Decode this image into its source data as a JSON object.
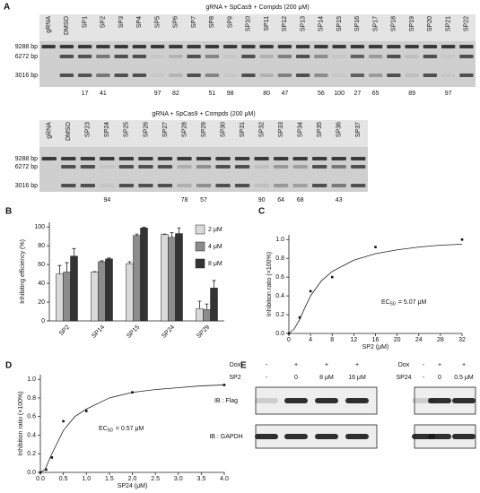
{
  "panel_a": {
    "label": "A",
    "gels": [
      {
        "title": "gRNA + SpCas9 + Compds (200 μM)",
        "lanes": [
          "gRNA",
          "DMSO",
          "SP1",
          "SP2",
          "SP3",
          "SP4",
          "SP5",
          "SP6",
          "SP7",
          "SP8",
          "SP9",
          "SP10",
          "SP11",
          "SP12",
          "SP13",
          "SP14",
          "SP15",
          "SP16",
          "SP17",
          "SP18",
          "SP19",
          "SP20",
          "SP21",
          "SP22"
        ],
        "inhibition": [
          null,
          null,
          17,
          41,
          null,
          null,
          97,
          82,
          null,
          51,
          98,
          null,
          80,
          47,
          null,
          56,
          100,
          27,
          65,
          null,
          89,
          null,
          97,
          null
        ],
        "markers": [
          "9288 bp",
          "6272 bp",
          "3016 bp"
        ]
      },
      {
        "title": "gRNA + SpCas9 + Compds (200 μM)",
        "lanes": [
          "gRNA",
          "DMSO",
          "SP23",
          "SP24",
          "SP25",
          "SP26",
          "SP27",
          "SP28",
          "SP29",
          "SP30",
          "SP31",
          "SP32",
          "SP33",
          "SP34",
          "SP35",
          "SP36",
          "SP37"
        ],
        "inhibition": [
          null,
          null,
          null,
          94,
          null,
          null,
          null,
          78,
          57,
          null,
          null,
          90,
          64,
          68,
          null,
          43,
          null
        ],
        "markers": [
          "9288 bp",
          "6272 bp",
          "3016 bp"
        ]
      }
    ]
  },
  "chart_data": [
    {
      "type": "bar",
      "label": "B",
      "ylabel": "Inhibiting efficiency (%)",
      "categories": [
        "SP2",
        "SP14",
        "SP15",
        "SP24",
        "SP29"
      ],
      "series": [
        {
          "name": "2 μM",
          "color": "#d9d9d9",
          "values": [
            50,
            52,
            61,
            92,
            13
          ],
          "errors": [
            9,
            0.5,
            2,
            0.5,
            8
          ]
        },
        {
          "name": "4 μM",
          "color": "#8c8c8c",
          "values": [
            52,
            63,
            91,
            89,
            12
          ],
          "errors": [
            10,
            1,
            1.5,
            5,
            6
          ]
        },
        {
          "name": "8 μM",
          "color": "#333333",
          "values": [
            69,
            66,
            99,
            93,
            35
          ],
          "errors": [
            8,
            1,
            1,
            6,
            8
          ]
        }
      ],
      "ylim": [
        0,
        105
      ],
      "yticks": [
        0,
        20,
        40,
        60,
        80,
        100
      ],
      "legend": "top-right"
    },
    {
      "type": "scatter",
      "label": "C",
      "xlabel": "SP2 (μM)",
      "ylabel": "Inhibition ratio (×100%)",
      "x": [
        0,
        2,
        4,
        8,
        16,
        32
      ],
      "values": [
        0,
        0.17,
        0.45,
        0.6,
        0.92,
        1.0
      ],
      "curve": {
        "x": [
          0,
          1,
          2,
          3,
          4,
          6,
          8,
          12,
          16,
          20,
          24,
          28,
          32
        ],
        "values": [
          0,
          0.05,
          0.15,
          0.28,
          0.4,
          0.56,
          0.66,
          0.78,
          0.85,
          0.89,
          0.92,
          0.94,
          0.95
        ]
      },
      "annotation": {
        "text": "EC",
        "sub": "50",
        "rest": "= 5.07 μM"
      },
      "xlim": [
        0,
        32
      ],
      "xticks": [
        0,
        4,
        8,
        12,
        16,
        20,
        24,
        28,
        32
      ],
      "ylim": [
        0,
        1.05
      ],
      "yticks": [
        {
          "value": 0,
          "label": "0.0"
        },
        0.2,
        0.4,
        0.6,
        0.8,
        {
          "value": 1,
          "label": "1.0"
        }
      ]
    },
    {
      "type": "scatter",
      "label": "D",
      "xlabel": "SP24 (μM)",
      "ylabel": "Inhibition ratio (×100%)",
      "x": [
        0,
        0.125,
        0.25,
        0.5,
        1,
        2,
        4
      ],
      "values": [
        0,
        0.03,
        0.16,
        0.55,
        0.66,
        0.86,
        0.94
      ],
      "curve": {
        "x": [
          0,
          0.1,
          0.25,
          0.5,
          0.75,
          1,
          1.5,
          2,
          2.5,
          3,
          3.5,
          4
        ],
        "values": [
          0,
          0.03,
          0.2,
          0.45,
          0.6,
          0.68,
          0.8,
          0.86,
          0.89,
          0.91,
          0.93,
          0.94
        ]
      },
      "annotation": {
        "text": "EC",
        "sub": "50",
        "rest": "= 0.57 μM"
      },
      "xlim": [
        0,
        4
      ],
      "xticks": [
        {
          "value": 0,
          "label": "0.0"
        },
        0.5,
        {
          "value": 1,
          "label": "1.0"
        },
        1.5,
        {
          "value": 2,
          "label": "2.0"
        },
        2.5,
        {
          "value": 3,
          "label": "3.0"
        },
        3.5,
        {
          "value": 4,
          "label": "4.0"
        }
      ],
      "ylim": [
        0,
        1.05
      ],
      "yticks": [
        {
          "value": 0,
          "label": "0.0"
        },
        0.2,
        0.4,
        0.6,
        0.8,
        {
          "value": 1,
          "label": "1.0"
        }
      ]
    }
  ],
  "panel_e": {
    "label": "E",
    "probes": [
      "IB : Flag",
      "IB : GAPDH"
    ],
    "blots": [
      {
        "rows": [
          {
            "label": "Dox",
            "cells": [
              "-",
              "+",
              "+",
              "+"
            ]
          },
          {
            "label": "SP2",
            "cells": [
              "-",
              "0",
              "8 μM",
              "16 μM"
            ]
          }
        ]
      },
      {
        "rows": [
          {
            "label": "Dox",
            "cells": [
              "-",
              "+",
              "+"
            ]
          },
          {
            "label": "SP24",
            "cells": [
              "-",
              "0",
              "0.5 μM"
            ]
          }
        ]
      }
    ]
  }
}
